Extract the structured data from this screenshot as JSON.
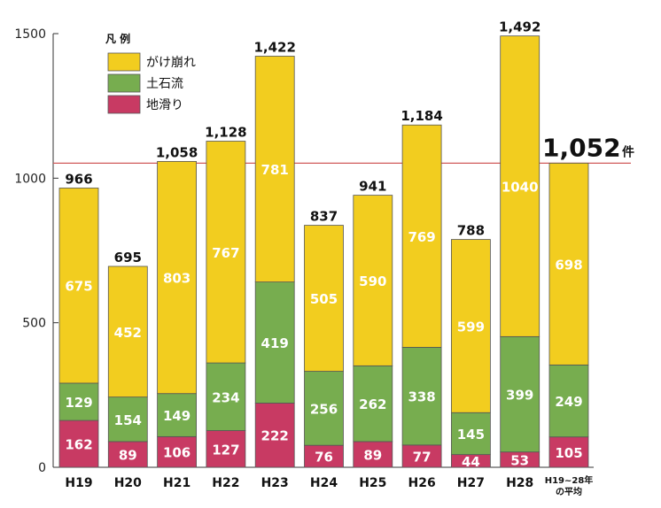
{
  "chart_data": {
    "type": "bar",
    "stacked": true,
    "categories": [
      "H19",
      "H20",
      "H21",
      "H22",
      "H23",
      "H24",
      "H25",
      "H26",
      "H27",
      "H28",
      "H19~28年の平均"
    ],
    "series": [
      {
        "name": "地滑り",
        "color": "#c83a63",
        "values": [
          162,
          89,
          106,
          127,
          222,
          76,
          89,
          77,
          44,
          53,
          105
        ]
      },
      {
        "name": "土石流",
        "color": "#77ad4f",
        "values": [
          129,
          154,
          149,
          234,
          419,
          256,
          262,
          338,
          145,
          399,
          249
        ]
      },
      {
        "name": "がけ崩れ",
        "color": "#f2cd1f",
        "values": [
          675,
          452,
          803,
          767,
          781,
          505,
          590,
          769,
          599,
          1040,
          698
        ]
      }
    ],
    "totals": [
      "966",
      "695",
      "1,058",
      "1,128",
      "1,422",
      "837",
      "941",
      "1,184",
      "788",
      "1,492",
      "1,052"
    ],
    "average_total_unit": "件",
    "average_line": 1052,
    "ylim": [
      0,
      1500
    ],
    "yticks": [
      0,
      500,
      1000,
      1500
    ],
    "legend": {
      "title": "凡 例",
      "placement": "top-left"
    },
    "grid": false
  }
}
